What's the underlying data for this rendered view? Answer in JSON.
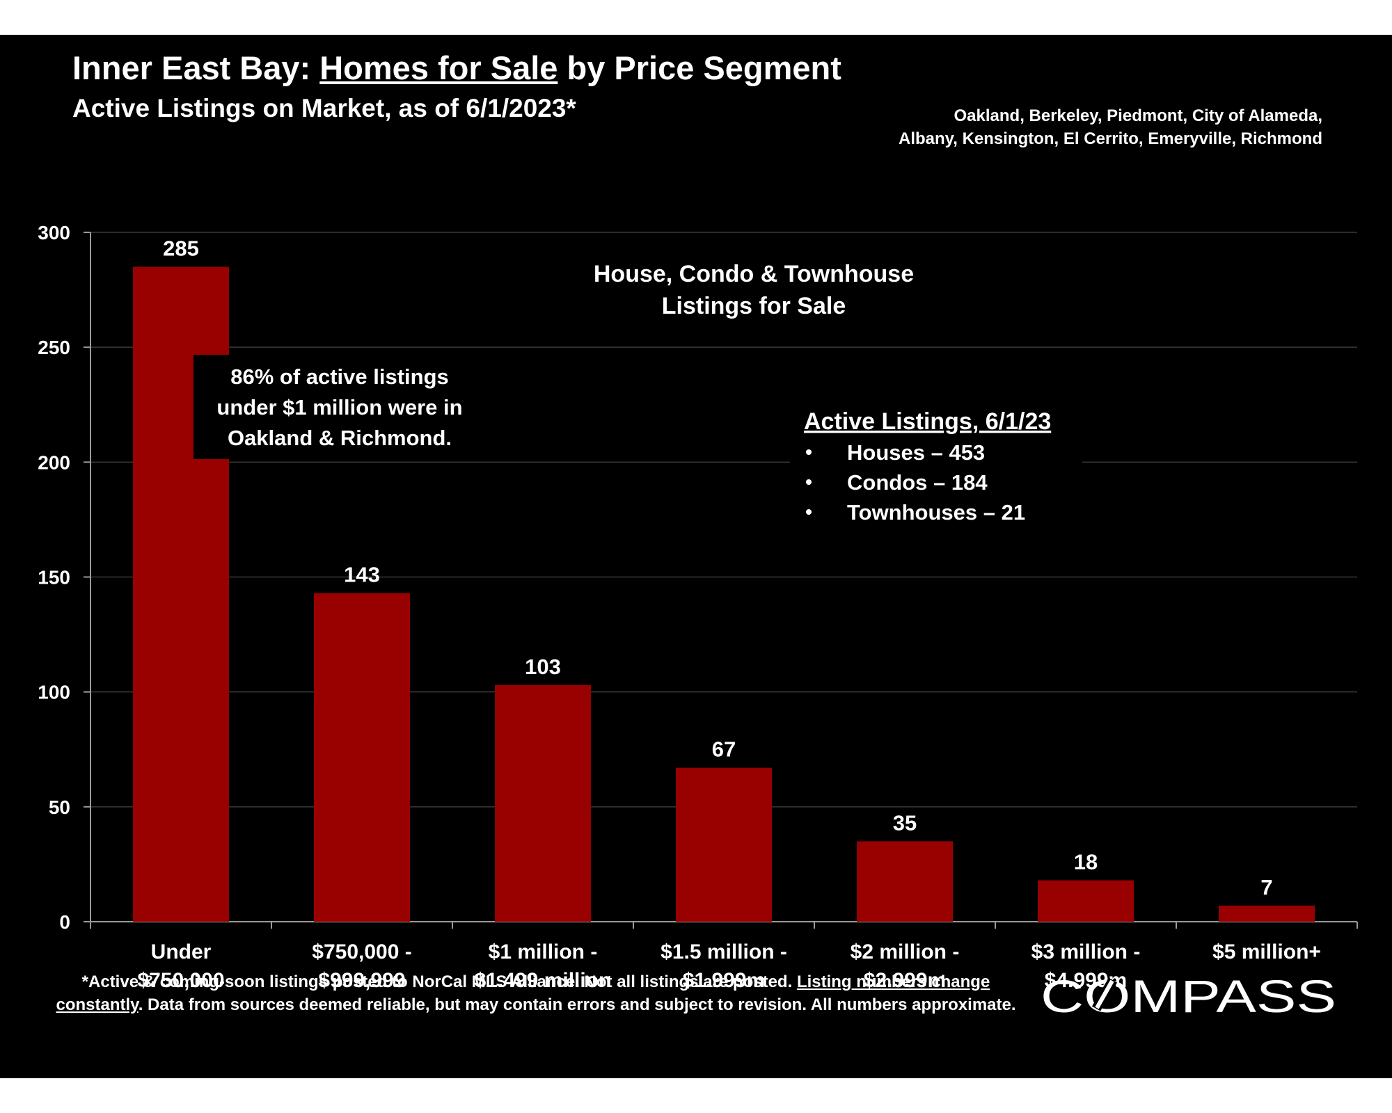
{
  "header": {
    "title_prefix": "Inner East Bay: ",
    "title_underlined": "Homes for Sale",
    "title_suffix": " by Price Segment",
    "subtitle": "Active Listings on Market, as of 6/1/2023*",
    "region_line1": "Oakland, Berkeley, Piedmont, City of Alameda,",
    "region_line2": "Albany, Kensington, El Cerrito, Emeryville, Richmond"
  },
  "chart_data": {
    "type": "bar",
    "categories": [
      [
        "Under",
        "$750,000"
      ],
      [
        "$750,000 -",
        "$999,999"
      ],
      [
        "$1 million -",
        "$1.499 million"
      ],
      [
        "$1.5 million -",
        "$1.999m"
      ],
      [
        "$2 million -",
        "$2.999m"
      ],
      [
        "$3 million -",
        "$4.999m"
      ],
      [
        "$5 million+"
      ]
    ],
    "values": [
      285,
      143,
      103,
      67,
      35,
      18,
      7
    ],
    "ylim": [
      0,
      300
    ],
    "yticks": [
      0,
      50,
      100,
      150,
      200,
      250,
      300
    ],
    "grid": true,
    "bar_color": "#990000",
    "chart_label": [
      "House, Condo & Townhouse",
      "Listings for Sale"
    ],
    "annotation": [
      "86% of active listings",
      "under $1 million were in",
      "Oakland & Richmond."
    ],
    "inset": {
      "heading": "Active Listings, 6/1/23",
      "items": [
        "Houses – 453",
        "Condos – 184",
        "Townhouses – 21"
      ]
    }
  },
  "footer": {
    "note_part1": "*Active & coming-soon listings posted to NorCal MLS Alliance. Not all listings are posted. ",
    "note_underlined": "Listing numbers change constantly",
    "note_part2": ". Data from sources deemed reliable, but may contain errors and subject to revision. All numbers approximate.",
    "logo_text": "COMPASS"
  }
}
